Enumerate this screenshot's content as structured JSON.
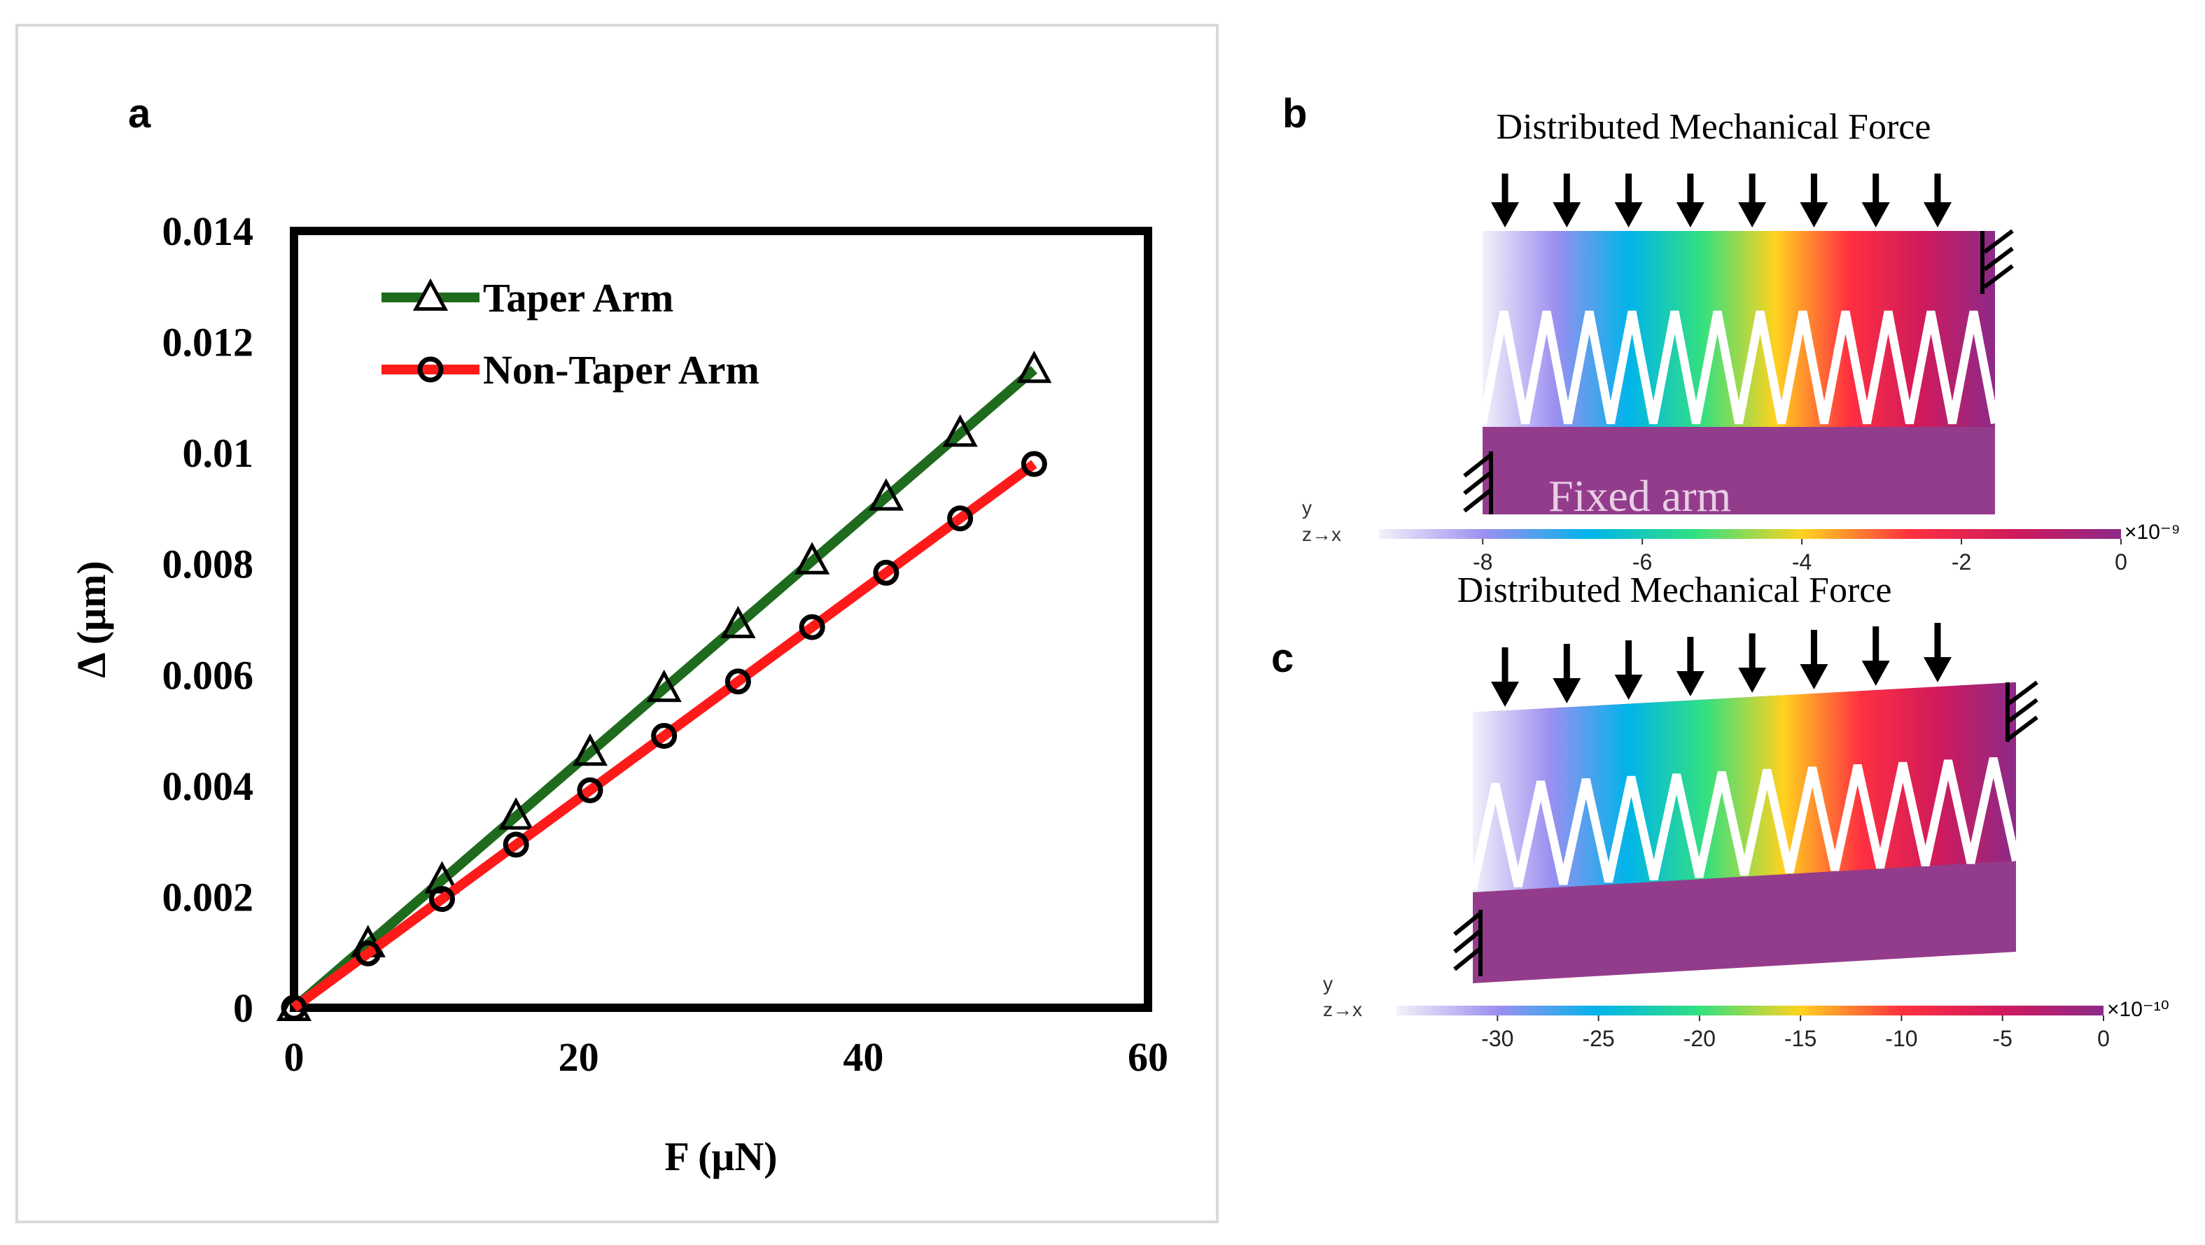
{
  "panel_labels": {
    "a": "a",
    "b": "b",
    "c": "c"
  },
  "chart_data": {
    "type": "line",
    "title": "",
    "xlabel": "F (μN)",
    "ylabel": "Δ (μm)",
    "xlim": [
      0,
      60
    ],
    "ylim": [
      0,
      0.014
    ],
    "x_ticks": [
      0,
      20,
      40,
      60
    ],
    "y_ticks": [
      0,
      0.002,
      0.004,
      0.006,
      0.008,
      0.01,
      0.012,
      0.014
    ],
    "x_tick_labels": [
      "0",
      "20",
      "40",
      "60"
    ],
    "y_tick_labels": [
      "0",
      "0.002",
      "0.004",
      "0.006",
      "0.008",
      "0.01",
      "0.012",
      "0.014"
    ],
    "grid": false,
    "legend_position": "top-left",
    "x": [
      0,
      5.2,
      10.4,
      15.6,
      20.8,
      26,
      31.2,
      36.4,
      41.6,
      46.8,
      52
    ],
    "series": [
      {
        "name": "Taper Arm",
        "color": "#1e6b1e",
        "marker": "triangle",
        "values": [
          0,
          0.00115,
          0.0023,
          0.00345,
          0.0046,
          0.00575,
          0.0069,
          0.00805,
          0.0092,
          0.01035,
          0.0115
        ]
      },
      {
        "name": "Non-Taper Arm",
        "color": "#ff1a1a",
        "marker": "circle",
        "values": [
          0,
          0.00098,
          0.00196,
          0.00294,
          0.00392,
          0.0049,
          0.00588,
          0.00686,
          0.00784,
          0.00882,
          0.0098
        ]
      }
    ]
  },
  "sim_b": {
    "title": "Distributed Mechanical Force",
    "region_label": "Fixed arm",
    "axis_y": "y",
    "axis_zx": "z→x",
    "scale_values": [
      -8,
      -6,
      -4,
      -2,
      0
    ],
    "scale_range": [
      -9.3,
      0
    ],
    "scale_labels": [
      "-8",
      "-6",
      "-4",
      "-2",
      "0"
    ],
    "scale_multiplier": "×10⁻⁹",
    "arrow_count": 8
  },
  "sim_c": {
    "title": "Distributed Mechanical Force",
    "axis_y": "y",
    "axis_zx": "z→x",
    "scale_values": [
      -30,
      -25,
      -20,
      -15,
      -10,
      -5,
      0
    ],
    "scale_range": [
      -35,
      0
    ],
    "scale_labels": [
      "-30",
      "-25",
      "-20",
      "-15",
      "-10",
      "-5",
      "0"
    ],
    "scale_multiplier": "×10⁻¹⁰",
    "arrow_count": 8
  },
  "colors": {
    "taper": "#1e6b1e",
    "non_taper": "#ff1a1a",
    "fixed_arm": "#943c8c",
    "gradient": [
      "#f4f0fa",
      "#9b8ff0",
      "#00b4ea",
      "#33e080",
      "#ffd21f",
      "#ff3040",
      "#d01a5c",
      "#8c2a88"
    ]
  }
}
